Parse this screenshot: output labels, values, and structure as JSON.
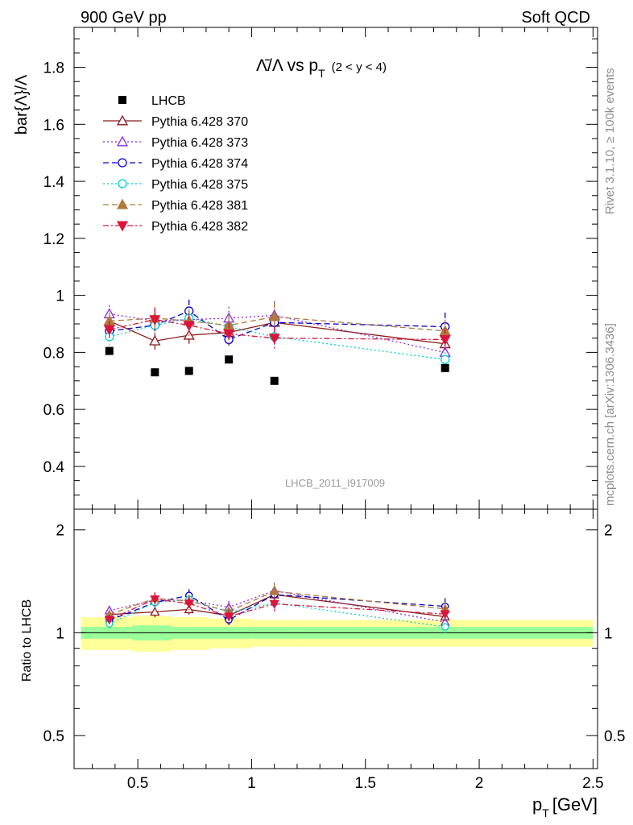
{
  "header": {
    "left": "900 GeV pp",
    "right": "Soft QCD"
  },
  "side_text": {
    "rivet": "Rivet 3.1.10, ≥ 100k events",
    "source": "mcplots.cern.ch [arXiv:1306.3436]"
  },
  "chart_data": {
    "type": "scatter",
    "title_main": "Λ̄/Λ vs p",
    "title_sub": "T",
    "title_range": "(2 < y < 4)",
    "ylabel": "bar{Λ}/Λ",
    "ratio_ylabel": "Ratio to LHCB",
    "xlabel": "p",
    "xlabel_sub": "T",
    "xlabel_unit": "[GeV]",
    "watermark": "LHCB_2011_I917009",
    "xlim": [
      0.22,
      2.52
    ],
    "ylim": [
      0.25,
      1.94
    ],
    "ratio_ylim": [
      0.4,
      2.3
    ],
    "ratio_log": true,
    "xticks": [
      "0.5",
      "1",
      "1.5",
      "2",
      "2.5"
    ],
    "yticks": [
      "0.4",
      "0.6",
      "0.8",
      "1",
      "1.2",
      "1.4",
      "1.6",
      "1.8"
    ],
    "ratio_yticks": [
      "0.5",
      "1",
      "2"
    ],
    "legend_position": "top-left",
    "x": [
      0.375,
      0.575,
      0.725,
      0.9,
      1.1,
      1.85
    ],
    "data": {
      "name": "LHCB",
      "values": [
        0.805,
        0.73,
        0.735,
        0.775,
        0.7,
        0.745
      ],
      "ratio_band_stat": [
        0.04,
        0.05,
        0.04,
        0.04,
        0.04,
        0.04
      ],
      "ratio_band_total": [
        0.11,
        0.12,
        0.11,
        0.1,
        0.09,
        0.09
      ]
    },
    "series": [
      {
        "name": "Pythia 6.428 370",
        "color": "#8b1a1a",
        "marker": "triangle-open",
        "dash": "solid",
        "values": [
          0.91,
          0.84,
          0.86,
          0.87,
          0.905,
          0.83
        ],
        "err": [
          0.03,
          0.03,
          0.03,
          0.03,
          0.03,
          0.03
        ]
      },
      {
        "name": "Pythia 6.428 373",
        "color": "#8a2be2",
        "marker": "triangle-open",
        "dash": "dotted",
        "values": [
          0.935,
          0.91,
          0.915,
          0.92,
          0.93,
          0.8
        ],
        "err": [
          0.03,
          0.04,
          0.04,
          0.04,
          0.05,
          0.04
        ]
      },
      {
        "name": "Pythia 6.428 374",
        "color": "#0000cd",
        "marker": "circle-open",
        "dash": "dashed",
        "values": [
          0.875,
          0.895,
          0.945,
          0.845,
          0.905,
          0.89
        ],
        "err": [
          0.03,
          0.03,
          0.04,
          0.03,
          0.04,
          0.05
        ]
      },
      {
        "name": "Pythia 6.428 375",
        "color": "#00ced1",
        "marker": "circle-open",
        "dash": "dotted",
        "values": [
          0.855,
          0.895,
          0.92,
          0.89,
          0.855,
          0.775
        ],
        "err": [
          0.03,
          0.03,
          0.03,
          0.03,
          0.03,
          0.04
        ]
      },
      {
        "name": "Pythia 6.428 381",
        "color": "#b07a3c",
        "marker": "triangle-filled",
        "dash": "dashed",
        "values": [
          0.91,
          0.92,
          0.91,
          0.895,
          0.925,
          0.875
        ],
        "err": [
          0.03,
          0.04,
          0.04,
          0.04,
          0.05,
          0.04
        ]
      },
      {
        "name": "Pythia 6.428 382",
        "color": "#dc143c",
        "marker": "triangle-down-filled",
        "dash": "dashdot",
        "values": [
          0.88,
          0.915,
          0.895,
          0.865,
          0.85,
          0.845
        ],
        "err": [
          0.03,
          0.04,
          0.04,
          0.04,
          0.04,
          0.04
        ]
      }
    ]
  }
}
